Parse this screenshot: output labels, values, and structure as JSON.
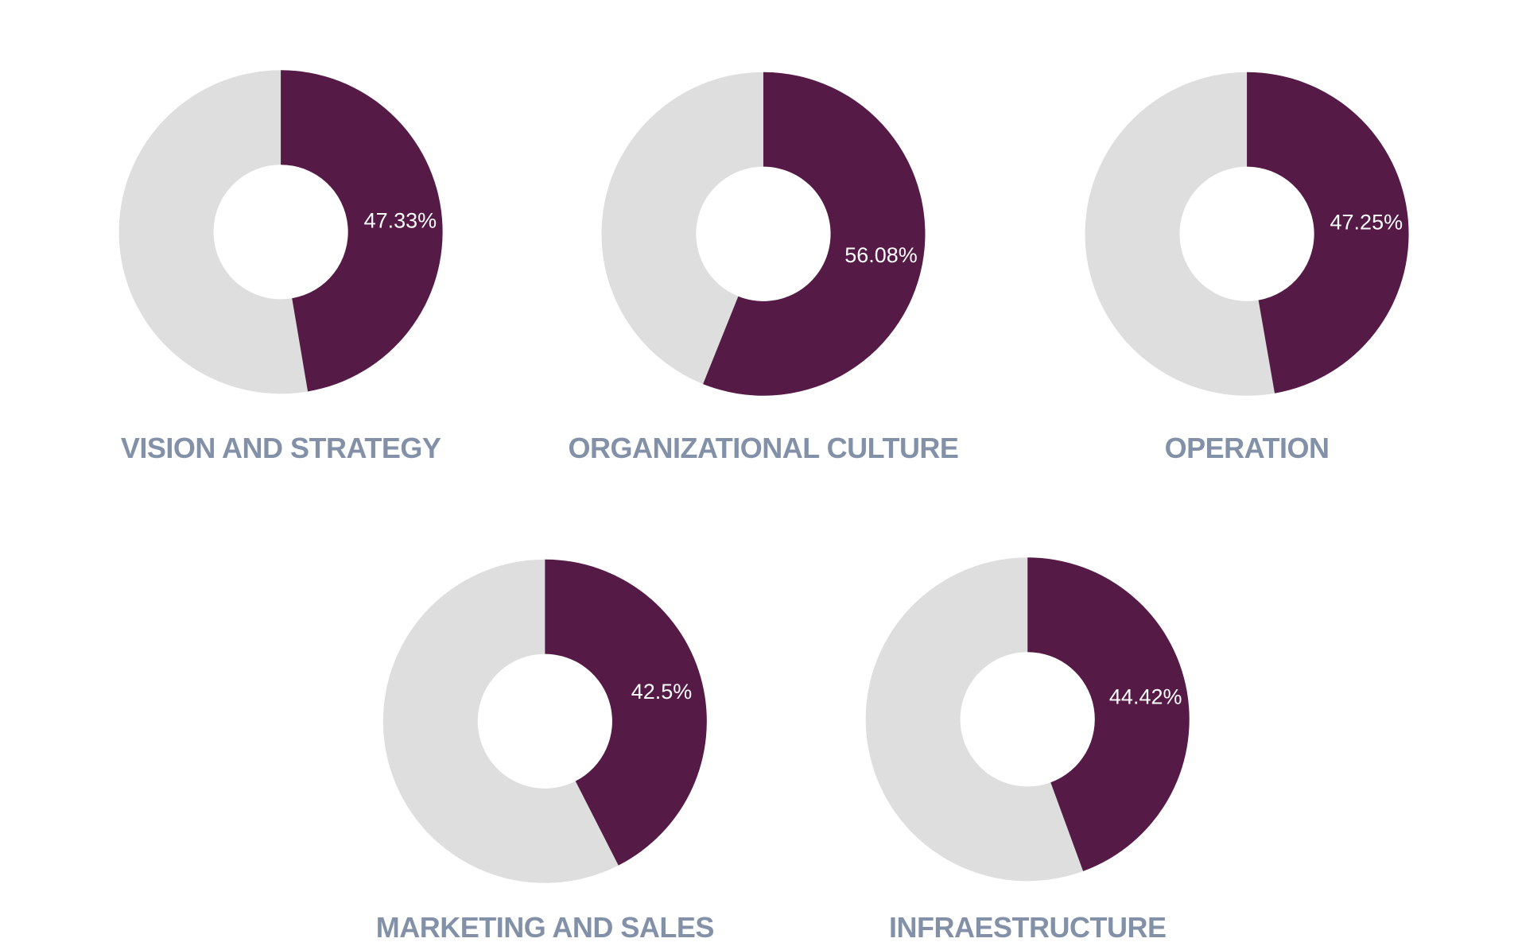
{
  "colors": {
    "filled": "#551a45",
    "remainder": "#dedede",
    "label": "#ffffff",
    "title": "#8391a8",
    "background": "#ffffff"
  },
  "chart_data": [
    {
      "type": "pie",
      "title": "VISION AND STRATEGY",
      "value": 47.33,
      "label": "47.33%"
    },
    {
      "type": "pie",
      "title": "ORGANIZATIONAL CULTURE",
      "value": 56.08,
      "label": "56.08%"
    },
    {
      "type": "pie",
      "title": "OPERATION",
      "value": 47.25,
      "label": "47.25%"
    },
    {
      "type": "pie",
      "title": "MARKETING AND SALES",
      "value": 42.5,
      "label": "42.5%"
    },
    {
      "type": "pie",
      "title": "INFRAESTRUCTURE",
      "value": 44.42,
      "label": "44.42%"
    }
  ]
}
